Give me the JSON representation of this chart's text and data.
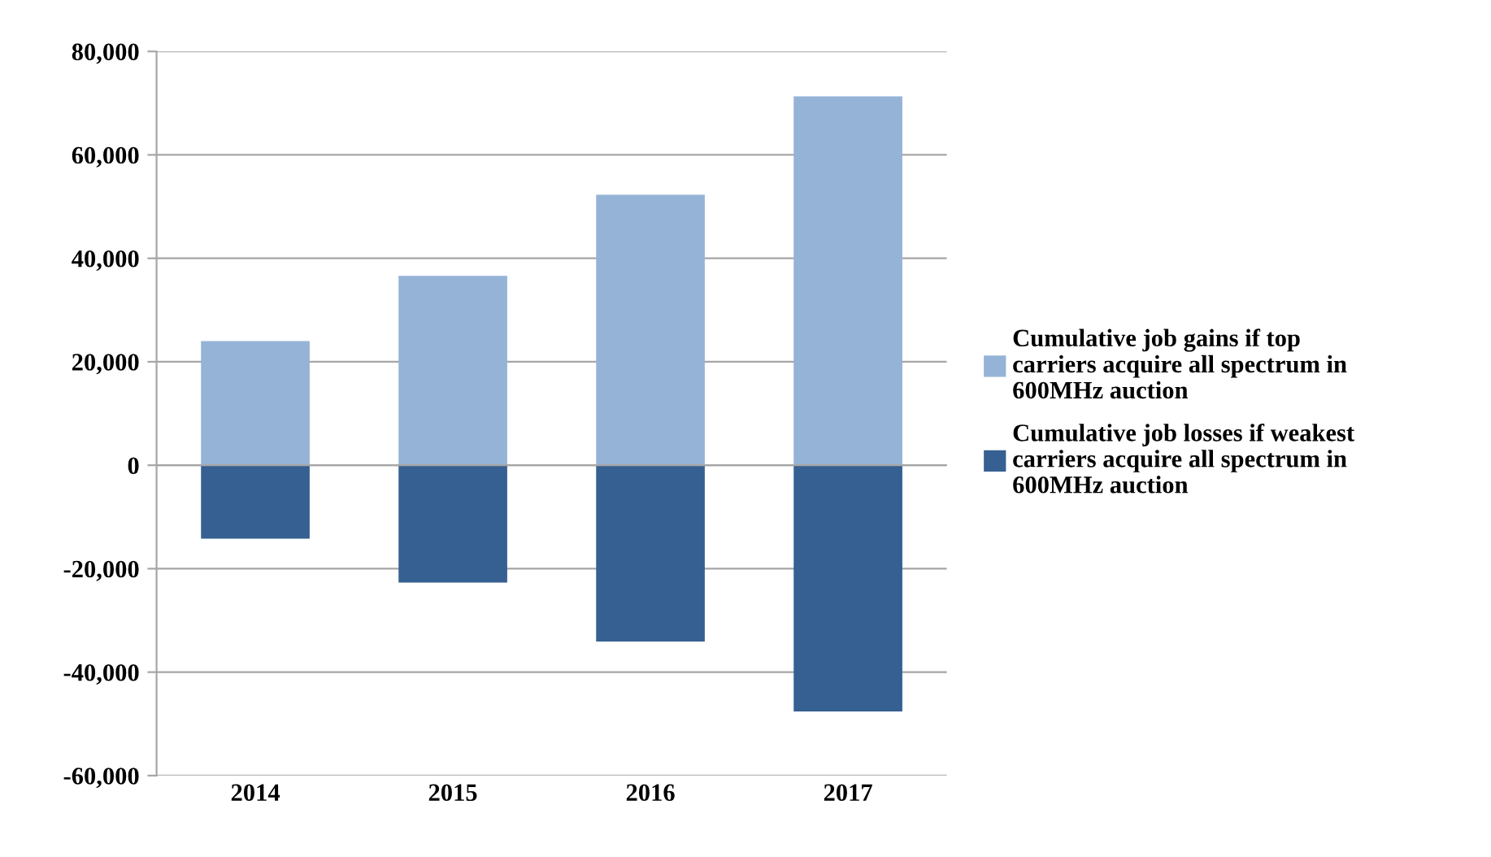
{
  "chart_data": {
    "type": "bar",
    "categories": [
      "2014",
      "2015",
      "2016",
      "2017"
    ],
    "series": [
      {
        "name": "Cumulative job gains if top carriers acquire all spectrum in 600MHz auction",
        "color": "#95b3d7",
        "values": [
          24000,
          36600,
          52300,
          71300
        ]
      },
      {
        "name": "Cumulative job losses if weakest carriers acquire all spectrum in 600MHz auction",
        "color": "#366092",
        "values": [
          -14200,
          -22700,
          -34100,
          -47600
        ]
      }
    ],
    "ylim": [
      -60000,
      80000
    ],
    "yticks": [
      {
        "value": -60000,
        "label": "-60,000"
      },
      {
        "value": -40000,
        "label": "-40,000"
      },
      {
        "value": -20000,
        "label": "-20,000"
      },
      {
        "value": 0,
        "label": "0"
      },
      {
        "value": 20000,
        "label": "20,000"
      },
      {
        "value": 40000,
        "label": "40,000"
      },
      {
        "value": 60000,
        "label": "60,000"
      },
      {
        "value": 80000,
        "label": "80,000"
      }
    ],
    "grid": "y",
    "legend": "right",
    "stacked": true
  }
}
